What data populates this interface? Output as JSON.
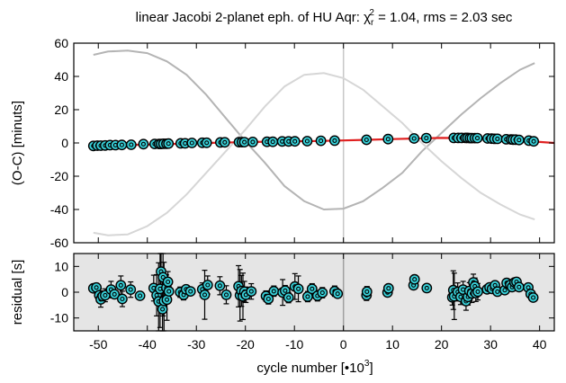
{
  "chart_data": {
    "type": "scatter",
    "title": {
      "prefix": "linear Jacobi 2-planet eph. of HU Aqr:  ",
      "chi": "χ",
      "chi_sub": "r",
      "chi_sup": "2",
      "suffix": " = 1.04, rms = 2.03 sec"
    },
    "x_axis": {
      "label": "cycle number [•10",
      "label_sup": "3",
      "label_close": "]",
      "range": [
        -55,
        43
      ],
      "ticks": [
        -50,
        -40,
        -30,
        -20,
        -10,
        0,
        10,
        20,
        30,
        40
      ]
    },
    "panels": [
      {
        "name": "oc",
        "ylabel": "(O-C) [minuts]",
        "ylim": [
          -60,
          60
        ],
        "yticks": [
          -60,
          -40,
          -20,
          0,
          20,
          40,
          60
        ],
        "background": "#ffffff",
        "lines": [
          {
            "role": "planet-1-light-time",
            "color": "#b4b4b4",
            "x": [
              -51,
              -48,
              -44,
              -40,
              -36,
              -32,
              -28,
              -24,
              -20,
              -16,
              -12,
              -8,
              -4,
              0,
              4,
              8,
              12,
              16,
              20,
              24,
              28,
              32,
              36,
              39
            ],
            "y": [
              53,
              55,
              55.5,
              54,
              49,
              41,
              29,
              15,
              1,
              -12,
              -26,
              -35,
              -40,
              -39.5,
              -35,
              -27,
              -18,
              -5,
              6,
              17,
              27,
              36,
              44,
              48
            ]
          },
          {
            "role": "planet-2-light-time",
            "color": "#d6d6d6",
            "x": [
              -51,
              -48,
              -44,
              -40,
              -36,
              -32,
              -28,
              -24,
              -20,
              -16,
              -12,
              -8,
              -4,
              0,
              4,
              8,
              12,
              16,
              20,
              24,
              28,
              32,
              36,
              39
            ],
            "y": [
              -54,
              -55.5,
              -55,
              -50,
              -42,
              -31,
              -18,
              -5,
              8,
              22,
              34,
              41,
              42,
              39,
              32,
              22,
              12,
              0,
              -11,
              -21,
              -30,
              -37,
              -43,
              -46
            ]
          },
          {
            "role": "combined-fit",
            "color": "#e02020",
            "x": [
              -51,
              -45,
              -40,
              -35,
              -30,
              -25,
              -20,
              -15,
              -10,
              -5,
              0,
              5,
              10,
              15,
              20,
              25,
              30,
              35,
              39,
              43
            ],
            "y": [
              -1.8,
              -1.3,
              -1,
              -0.6,
              -0.2,
              0.2,
              0.5,
              0.8,
              1.0,
              1.2,
              1.5,
              1.9,
              2.3,
              2.7,
              3.0,
              2.9,
              2.5,
              1.8,
              0.8,
              0
            ]
          }
        ],
        "points_x": [
          -51,
          -50.2,
          -49.5,
          -48.6,
          -47.6,
          -46.5,
          -45.2,
          -43.3,
          -40.8,
          -38.5,
          -37.6,
          -37.2,
          -36.7,
          -36.1,
          -35.7,
          -33.2,
          -32.3,
          -30.9,
          -28.8,
          -27.9,
          -25.1,
          -24.2,
          -21.3,
          -20.7,
          -20.2,
          -18.5,
          -15.6,
          -14.4,
          -12.5,
          -11.2,
          -9.9,
          -7.4,
          -4.6,
          -1.8,
          4.7,
          9.1,
          14.4,
          16.9,
          22.5,
          23.4,
          24.1,
          24.9,
          25.3,
          25.8,
          26.2,
          26.8,
          27.3,
          29.4,
          30.2,
          30.8,
          31.4,
          33.2,
          34.2,
          34.6,
          35.1,
          35.8,
          37.8,
          38.8
        ],
        "points_y": [
          -1.8,
          -1.6,
          -1.6,
          -1.5,
          -1.3,
          -1.3,
          -1.2,
          -1.1,
          -0.7,
          -0.6,
          -0.6,
          -0.6,
          -0.5,
          -0.5,
          -0.4,
          -0.2,
          -0.2,
          0.0,
          0.1,
          0.1,
          0.3,
          0.4,
          0.5,
          0.5,
          0.5,
          0.6,
          0.7,
          0.7,
          0.9,
          0.9,
          1.0,
          1.1,
          1.3,
          1.4,
          1.9,
          2.3,
          2.7,
          2.9,
          3.0,
          3.0,
          3.0,
          3.0,
          3.0,
          2.9,
          2.9,
          2.9,
          2.9,
          2.7,
          2.6,
          2.5,
          2.5,
          2.2,
          2.1,
          2.0,
          2.0,
          1.8,
          1.4,
          1.0
        ]
      },
      {
        "name": "residual",
        "ylabel": "residual [s]",
        "ylim": [
          -15,
          15
        ],
        "yticks": [
          -10,
          0,
          10
        ],
        "background": "#e5e5e5",
        "points_x": [
          -51,
          -50.4,
          -49.8,
          -49.5,
          -49.1,
          -48.6,
          -47.4,
          -46.7,
          -45.4,
          -45.1,
          -43.4,
          -41.5,
          -38.7,
          -38.1,
          -37.7,
          -37.4,
          -37.2,
          -36.9,
          -36.8,
          -36.6,
          -36.1,
          -36.0,
          -35.8,
          -35.6,
          -33.3,
          -32.6,
          -32.1,
          -31.2,
          -28.8,
          -28.3,
          -27.7,
          -25.2,
          -23.9,
          -21.4,
          -21.1,
          -20.8,
          -20.5,
          -20.2,
          -19.9,
          -18.8,
          -15.8,
          -15.3,
          -14.2,
          -12.4,
          -11.9,
          -11.2,
          -9.9,
          -9.2,
          -7.3,
          -6.4,
          -5.3,
          -4.3,
          -1.8,
          -1.2,
          4.7,
          4.8,
          9.0,
          9.2,
          14.3,
          14.5,
          17.0,
          22.2,
          22.4,
          22.6,
          23.3,
          23.9,
          24.4,
          25.0,
          25.4,
          25.7,
          26.2,
          26.5,
          26.8,
          27.0,
          27.4,
          29.3,
          29.8,
          30.3,
          30.9,
          31.4,
          32.9,
          33.3,
          34.0,
          34.4,
          34.9,
          35.3,
          35.8,
          37.7,
          38.2,
          38.7
        ],
        "points_y": [
          1.5,
          1.8,
          -1.2,
          -2.8,
          -1.5,
          -1.2,
          1.0,
          -0.8,
          2.7,
          -2.6,
          1.0,
          -1.4,
          1.6,
          -1.2,
          -3.6,
          1.3,
          8.0,
          -6.6,
          5.8,
          -3.4,
          1.7,
          -2.9,
          4.0,
          0.3,
          0.0,
          -1.0,
          1.1,
          0.3,
          1.1,
          -1.0,
          2.8,
          2.5,
          -1.0,
          2.3,
          -1.2,
          0.5,
          -1.6,
          0.2,
          -1.0,
          0.3,
          -1.5,
          -2.6,
          0.4,
          -0.1,
          0.6,
          -2.1,
          2.2,
          1.3,
          -1.7,
          1.3,
          -1.4,
          -0.2,
          0.4,
          -0.6,
          -1.2,
          0.2,
          -0.1,
          1.5,
          2.7,
          5.0,
          1.6,
          -2.0,
          0.8,
          -1.6,
          0.1,
          -1.8,
          1.0,
          -3.5,
          -1.8,
          0.5,
          -0.5,
          3.8,
          2.3,
          -0.4,
          0.2,
          1.1,
          1.9,
          1.3,
          2.7,
          0.2,
          0.8,
          3.6,
          2.8,
          2.0,
          3.8,
          4.0,
          2.0,
          1.8,
          -0.7,
          -2.1
        ],
        "errors": [
          1.5,
          1.5,
          2.5,
          3,
          2,
          2.5,
          3.2,
          1.2,
          3.6,
          3,
          3,
          1.5,
          5,
          8,
          15,
          15,
          15,
          15,
          15,
          15,
          5,
          8,
          4,
          4,
          2,
          2,
          1.5,
          1.5,
          2.5,
          9.5,
          3.5,
          3.5,
          3.5,
          8,
          10,
          6,
          9,
          4,
          3,
          3,
          2,
          2,
          2,
          5,
          2,
          2,
          5,
          5,
          2,
          2,
          2,
          2,
          2,
          1.5,
          2,
          2,
          1.5,
          1.5,
          1.5,
          1.5,
          1.5,
          3,
          7.5,
          9,
          3.5,
          3,
          3.2,
          3.5,
          3.2,
          3.2,
          3.5,
          3.2,
          3.2,
          3.2,
          3.2,
          1.5,
          1.5,
          1.5,
          1.5,
          1.5,
          1.5,
          1.5,
          1.5,
          1.5,
          1.5,
          1.5,
          1.5,
          1.5,
          1.5,
          1.5
        ]
      }
    ],
    "colors": {
      "marker_fill": "#38d0d8",
      "marker_edge": "#000000",
      "zero_vline": "#c8c8c8",
      "zero_vline_residual": "#a0a0a0"
    }
  }
}
